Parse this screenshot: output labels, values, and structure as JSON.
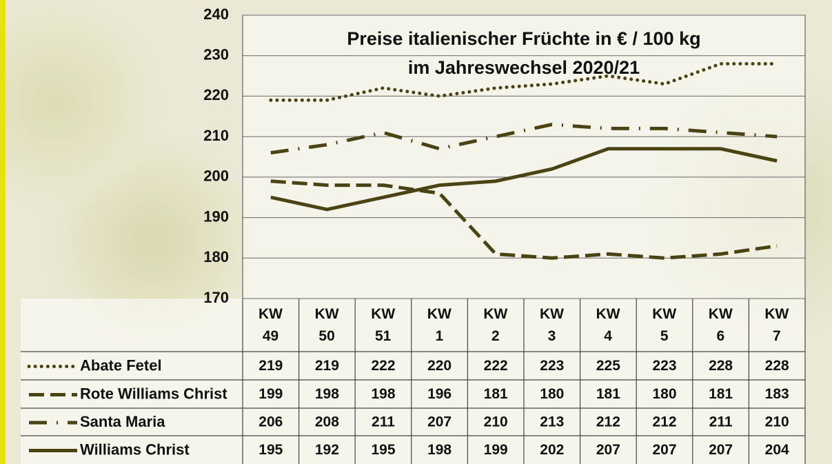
{
  "chart_data": {
    "type": "line",
    "title": "Preise italienischer Früchte in € / 100 kg",
    "subtitle": "im Jahreswechsel 2020/21",
    "categories": [
      "KW 49",
      "KW 50",
      "KW 51",
      "KW 1",
      "KW 2",
      "KW 3",
      "KW 4",
      "KW 5",
      "KW 6",
      "KW 7"
    ],
    "series": [
      {
        "name": "Abate Fetel",
        "color": "#4a4414",
        "dash": "dotted",
        "values": [
          219,
          219,
          222,
          220,
          222,
          223,
          225,
          223,
          228,
          228
        ]
      },
      {
        "name": "Rote Williams Christ",
        "color": "#4a4414",
        "dash": "dashed",
        "values": [
          199,
          198,
          198,
          196,
          181,
          180,
          181,
          180,
          181,
          183
        ]
      },
      {
        "name": "Santa Maria",
        "color": "#4a4414",
        "dash": "dashdot",
        "values": [
          206,
          208,
          211,
          207,
          210,
          213,
          212,
          212,
          211,
          210
        ]
      },
      {
        "name": "Williams Christ",
        "color": "#4a4414",
        "dash": "solid",
        "values": [
          195,
          192,
          195,
          198,
          199,
          202,
          207,
          207,
          207,
          204
        ]
      }
    ],
    "ylim": [
      170,
      240
    ],
    "yticks": [
      170,
      180,
      190,
      200,
      210,
      220,
      230,
      240
    ],
    "grid": true
  }
}
